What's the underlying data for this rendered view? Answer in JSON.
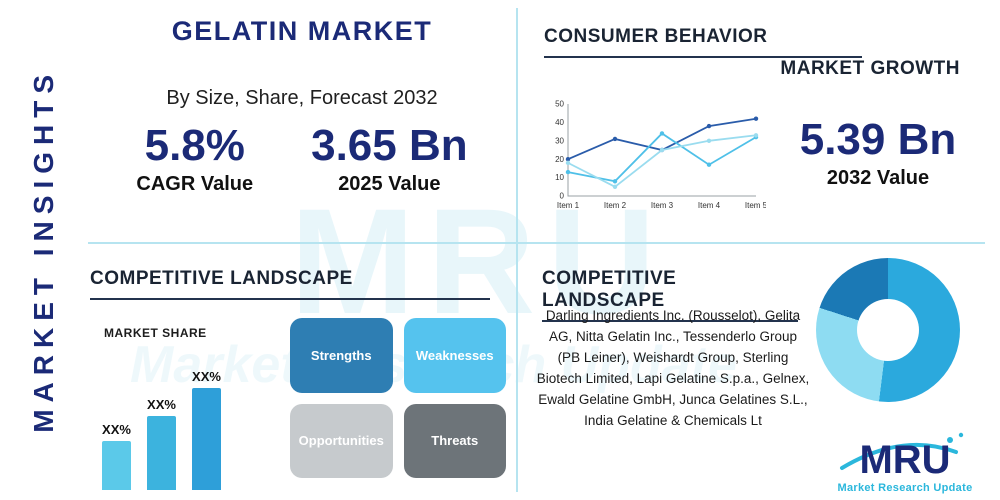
{
  "accent_colors": {
    "navy": "#1b2a77",
    "heading": "#1a2433",
    "cyan": "#2bb7dc",
    "divider": "#b6e4f0"
  },
  "sidebar": {
    "title": "MARKET INSIGHTS"
  },
  "header": {
    "title": "GELATIN MARKET",
    "subtitle": "By Size, Share, Forecast 2032"
  },
  "stats": {
    "cagr": {
      "value": "5.8%",
      "label": "CAGR Value"
    },
    "value_2025": {
      "value": "3.65 Bn",
      "label": "2025 Value"
    },
    "value_2032": {
      "value": "5.39 Bn",
      "label": "2032 Value"
    }
  },
  "sections": {
    "consumer_behavior": "CONSUMER BEHAVIOR",
    "market_growth": "MARKET GROWTH",
    "competitive_landscape_left": "COMPETITIVE LANDSCAPE",
    "competitive_landscape_right": "COMPETITIVE LANDSCAPE",
    "market_share": "MARKET SHARE"
  },
  "swot": [
    {
      "label": "Strengths",
      "color": "#2e7eb3"
    },
    {
      "label": "Weaknesses",
      "color": "#55c3ee"
    },
    {
      "label": "Opportunities",
      "color": "#c6cacd"
    },
    {
      "label": "Threats",
      "color": "#6d7479"
    }
  ],
  "companies": "Darling Ingredients Inc. (Rousselot), Gelita AG, Nitta Gelatin Inc., Tessenderlo Group (PB Leiner), Weishardt Group, Sterling Biotech Limited, Lapi Gelatine S.p.a., Gelnex, Ewald Gelatine GmbH, Junca Gelatines S.L., India Gelatine & Chemicals Lt",
  "logo": {
    "text": "MRU",
    "tagline": "Market Research Update"
  },
  "watermark": {
    "text": "MRU",
    "subtext": "Market Research Update"
  },
  "chart_data": [
    {
      "type": "line",
      "title": "MARKET GROWTH",
      "x": [
        "Item 1",
        "Item 2",
        "Item 3",
        "Item 4",
        "Item 5"
      ],
      "ylim": [
        0,
        50
      ],
      "yticks": [
        0,
        10,
        20,
        30,
        40,
        50
      ],
      "grid": false,
      "legend": "none",
      "series": [
        {
          "name": "series-navy",
          "color": "#2a5caa",
          "values": [
            20,
            31,
            25,
            38,
            42
          ]
        },
        {
          "name": "series-lightblue",
          "color": "#4fc0e8",
          "values": [
            13,
            8,
            34,
            17,
            32
          ]
        },
        {
          "name": "series-paleblue",
          "color": "#9adcef",
          "values": [
            18,
            5,
            25,
            30,
            33
          ]
        }
      ]
    },
    {
      "type": "bar",
      "title": "MARKET SHARE",
      "categories": [
        "XX%",
        "XX%",
        "XX%"
      ],
      "values": [
        30,
        45,
        62
      ],
      "ylim": [
        0,
        70
      ],
      "colors": [
        "#5bc9e9",
        "#3cb3de",
        "#2e9fd9"
      ],
      "xlabel": "",
      "ylabel": ""
    },
    {
      "type": "pie",
      "donut": true,
      "slices": [
        {
          "label": "segment-1",
          "value": 52,
          "color": "#2ba9dd"
        },
        {
          "label": "segment-2",
          "value": 28,
          "color": "#8edcf2"
        },
        {
          "label": "segment-3",
          "value": 20,
          "color": "#1b79b5"
        }
      ]
    }
  ]
}
